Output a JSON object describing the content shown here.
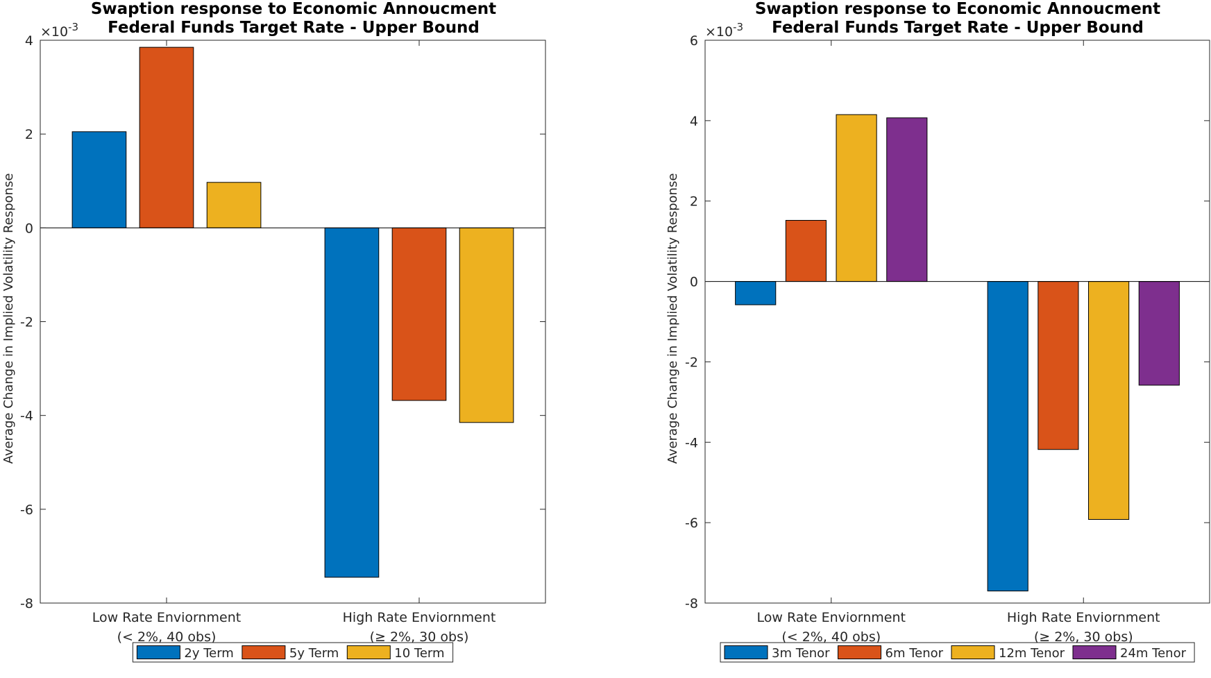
{
  "chart_data": [
    {
      "type": "bar",
      "title": [
        "Swaption response to Economic Annoucment",
        "Federal Funds Target Rate - Upper Bound"
      ],
      "ylabel": "Average Change in Implied Volatility Response",
      "exponent_label": "×10",
      "exponent_power": "-3",
      "ylim": [
        -8,
        4
      ],
      "yticks": [
        -8,
        -6,
        -4,
        -2,
        0,
        2,
        4
      ],
      "ytick_labels": [
        "-8",
        "-6",
        "-4",
        "-2",
        "0",
        "2",
        "4"
      ],
      "categories": [
        [
          "Low Rate Enviornment",
          "(< 2%, 40 obs)"
        ],
        [
          "High Rate Enviornment",
          "(≥ 2%, 30 obs)"
        ]
      ],
      "series": [
        {
          "name": "2y Term",
          "color": "#0072BD",
          "values": [
            2.05,
            -7.45
          ]
        },
        {
          "name": "5y Term",
          "color": "#D95319",
          "values": [
            3.85,
            -3.68
          ]
        },
        {
          "name": "10 Term",
          "color": "#EDB120",
          "values": [
            0.97,
            -4.15
          ]
        }
      ],
      "legend_position": "bottom",
      "grid": false
    },
    {
      "type": "bar",
      "title": [
        "Swaption response to Economic Annoucment",
        "Federal Funds Target Rate - Upper Bound"
      ],
      "ylabel": "Average Change in Implied Volatility Response",
      "exponent_label": "×10",
      "exponent_power": "-3",
      "ylim": [
        -8,
        6
      ],
      "yticks": [
        -8,
        -6,
        -4,
        -2,
        0,
        2,
        4,
        6
      ],
      "ytick_labels": [
        "-8",
        "-6",
        "-4",
        "-2",
        "0",
        "2",
        "4",
        "6"
      ],
      "categories": [
        [
          "Low Rate Enviornment",
          "(< 2%, 40 obs)"
        ],
        [
          "High Rate Enviornment",
          "(≥ 2%, 30 obs)"
        ]
      ],
      "series": [
        {
          "name": "3m Tenor",
          "color": "#0072BD",
          "values": [
            -0.58,
            -7.7
          ]
        },
        {
          "name": "6m Tenor",
          "color": "#D95319",
          "values": [
            1.52,
            -4.18
          ]
        },
        {
          "name": "12m Tenor",
          "color": "#EDB120",
          "values": [
            4.15,
            -5.92
          ]
        },
        {
          "name": "24m Tenor",
          "color": "#7E2F8E",
          "values": [
            4.07,
            -2.58
          ]
        }
      ],
      "legend_position": "bottom",
      "grid": false
    }
  ]
}
